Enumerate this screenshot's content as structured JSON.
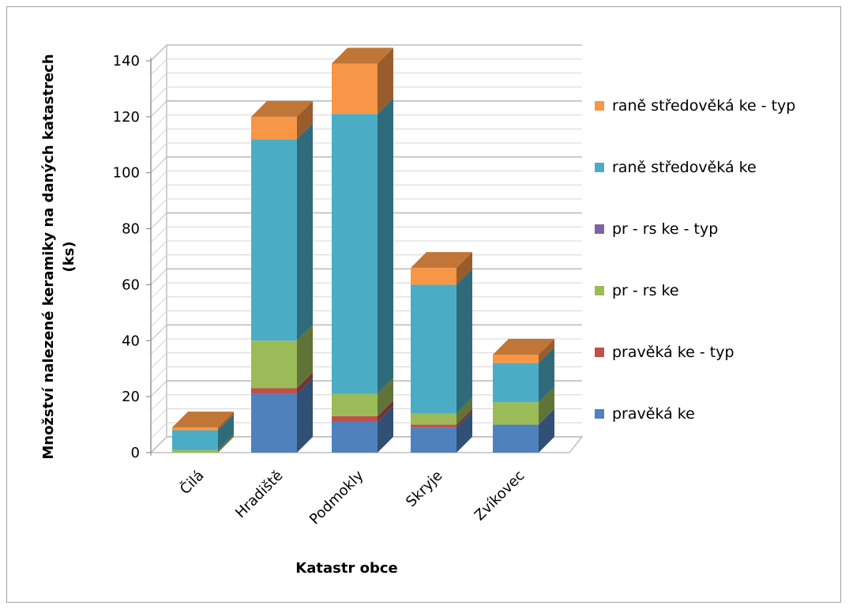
{
  "chart_data": {
    "type": "bar",
    "subtype": "stacked-3d-column",
    "title": "",
    "xlabel": "Katastr obce",
    "ylabel": "Množství nalezené keramiky na daných katastrech (ks)",
    "ylim": [
      0,
      140
    ],
    "yticks": [
      0,
      20,
      40,
      60,
      80,
      100,
      120,
      140
    ],
    "grid": true,
    "legend_position": "right",
    "categories": [
      "Čilá",
      "Hradiště",
      "Podmokly",
      "Skryje",
      "Zvíkovec"
    ],
    "series": [
      {
        "name": "pravěká ke",
        "color": "#4F81BD",
        "values": [
          0,
          21,
          11,
          9,
          10
        ]
      },
      {
        "name": "pravěká ke - typ",
        "color": "#C0504D",
        "values": [
          0,
          2,
          2,
          1,
          0
        ]
      },
      {
        "name": "pr - rs ke",
        "color": "#9BBB59",
        "values": [
          1,
          17,
          8,
          4,
          8
        ]
      },
      {
        "name": "pr - rs ke - typ",
        "color": "#8064A2",
        "values": [
          0,
          0,
          0,
          0,
          0
        ]
      },
      {
        "name": "raně středověká ke",
        "color": "#4BACC6",
        "values": [
          7,
          72,
          100,
          46,
          14
        ]
      },
      {
        "name": "raně středověká ke - typ",
        "color": "#F79646",
        "values": [
          1,
          8,
          18,
          6,
          3
        ]
      }
    ]
  }
}
